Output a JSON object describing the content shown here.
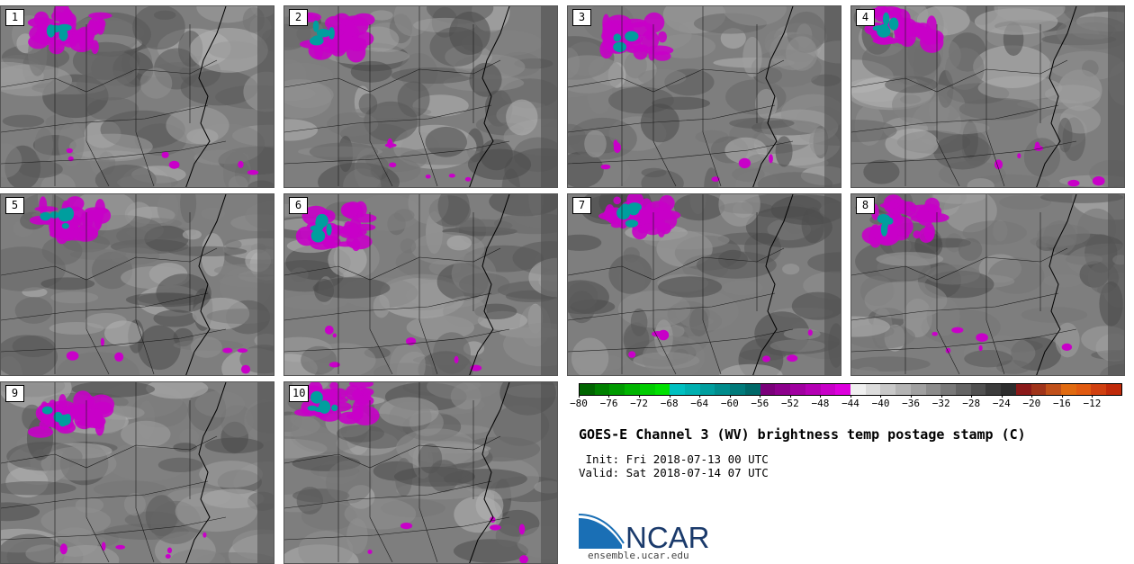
{
  "panels": [
    {
      "label": "1"
    },
    {
      "label": "2"
    },
    {
      "label": "3"
    },
    {
      "label": "4"
    },
    {
      "label": "5"
    },
    {
      "label": "6"
    },
    {
      "label": "7"
    },
    {
      "label": "8"
    },
    {
      "label": "9"
    },
    {
      "label": "10"
    }
  ],
  "colorbar": {
    "ticks": [
      "−80",
      "−76",
      "−72",
      "−68",
      "−64",
      "−60",
      "−56",
      "−52",
      "−48",
      "−44",
      "−40",
      "−36",
      "−32",
      "−28",
      "−24",
      "−20",
      "−16",
      "−12"
    ],
    "colors": [
      "#006400",
      "#008000",
      "#009a00",
      "#00b400",
      "#00cc00",
      "#00e000",
      "#00c0c0",
      "#00b0b0",
      "#009e9e",
      "#008c8c",
      "#007a7a",
      "#006868",
      "#7a007a",
      "#8c008c",
      "#a000a0",
      "#b400b4",
      "#c800c8",
      "#dd00dd",
      "#f0f0f0",
      "#dcdcdc",
      "#c8c8c8",
      "#b4b4b4",
      "#a0a0a0",
      "#8c8c8c",
      "#787878",
      "#646464",
      "#505050",
      "#3c3c3c",
      "#2e2e2e",
      "#8b1a1a",
      "#a0341a",
      "#c0501a",
      "#e06a10",
      "#e05a10",
      "#d04010",
      "#c02a0a"
    ]
  },
  "title": "GOES-E Channel 3 (WV) brightness temp postage stamp (C)",
  "init": " Init: Fri 2018-07-13 00 UTC",
  "valid": "Valid: Sat 2018-07-14 07 UTC",
  "logo": {
    "text": "NCAR",
    "color": "#1a3a6b",
    "swoosh": "#1a6fb5"
  },
  "site": "ensemble.ucar.edu"
}
